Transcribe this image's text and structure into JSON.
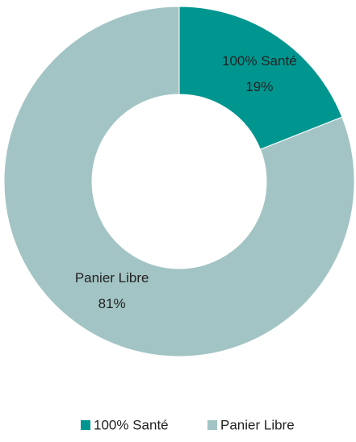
{
  "chart_data": {
    "type": "pie",
    "categories": [
      "100% Santé",
      "Panier Libre"
    ],
    "values": [
      19,
      81
    ],
    "value_labels": [
      "19%",
      "81%"
    ],
    "colors": [
      "#00968f",
      "#a3c4c4"
    ],
    "donut": true,
    "legend": "bottom"
  }
}
